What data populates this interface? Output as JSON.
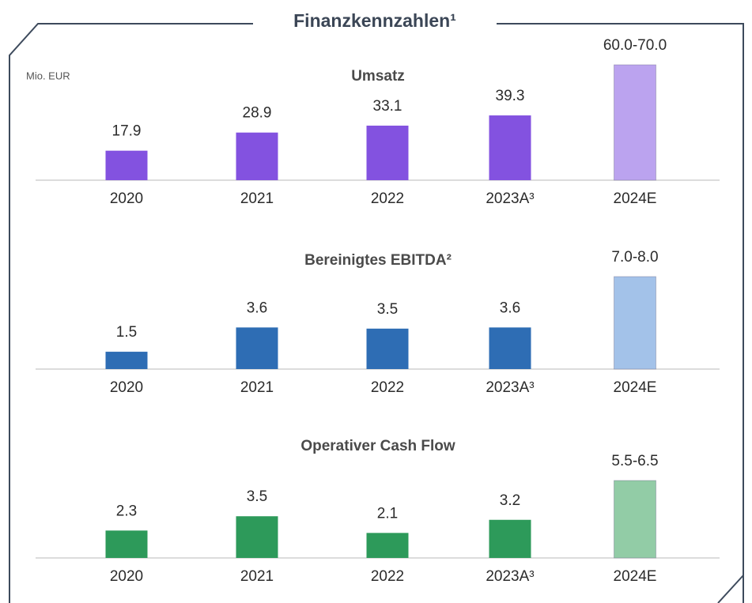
{
  "title": "Finanzkennzahlen¹",
  "chart_data": [
    {
      "type": "bar",
      "title": "Umsatz",
      "unit": "Mio. EUR",
      "categories": [
        "2020",
        "2021",
        "2022",
        "2023A³",
        "2024E"
      ],
      "values": [
        17.9,
        28.9,
        33.1,
        39.3,
        70
      ],
      "value_labels": [
        "17.9",
        "28.9",
        "33.1",
        "39.3",
        "60.0-70.0"
      ],
      "colors": [
        "#8352e0",
        "#8352e0",
        "#8352e0",
        "#8352e0",
        "#bba3ef"
      ],
      "ylim": [
        0,
        70
      ]
    },
    {
      "type": "bar",
      "title": "Bereinigtes EBITDA²",
      "categories": [
        "2020",
        "2021",
        "2022",
        "2023A³",
        "2024E"
      ],
      "values": [
        1.5,
        3.6,
        3.5,
        3.6,
        8
      ],
      "value_labels": [
        "1.5",
        "3.6",
        "3.5",
        "3.6",
        "7.0-8.0"
      ],
      "colors": [
        "#2e6db4",
        "#2e6db4",
        "#2e6db4",
        "#2e6db4",
        "#a3c2e9"
      ],
      "ylim": [
        0,
        8
      ]
    },
    {
      "type": "bar",
      "title": "Operativer Cash Flow",
      "categories": [
        "2020",
        "2021",
        "2022",
        "2023A³",
        "2024E"
      ],
      "values": [
        2.3,
        3.5,
        2.1,
        3.2,
        6.5
      ],
      "value_labels": [
        "2.3",
        "3.5",
        "2.1",
        "3.2",
        "5.5-6.5"
      ],
      "colors": [
        "#2d9a5a",
        "#2d9a5a",
        "#2d9a5a",
        "#2d9a5a",
        "#92cca6"
      ],
      "ylim": [
        0,
        6.5
      ]
    }
  ]
}
